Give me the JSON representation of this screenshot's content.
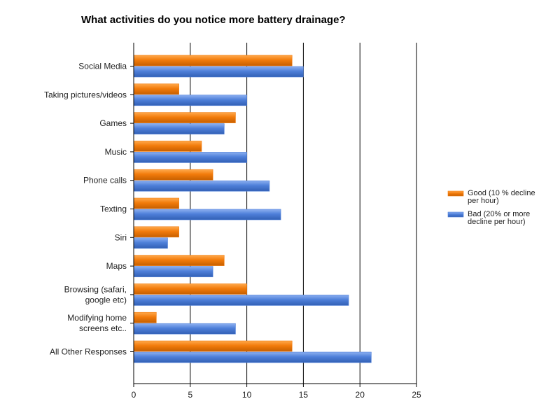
{
  "chart_data": {
    "type": "bar",
    "orientation": "horizontal",
    "title": "What activities do you notice more battery drainage?",
    "categories": [
      "Social Media",
      "Taking pictures/videos",
      "Games",
      "Music",
      "Phone calls",
      "Texting",
      "Siri",
      "Maps",
      "Browsing (safari, google etc)",
      "Modifying home screens etc..",
      "All Other Responses"
    ],
    "category_label_lines": [
      [
        "Social Media"
      ],
      [
        "Taking pictures/videos"
      ],
      [
        "Games"
      ],
      [
        "Music"
      ],
      [
        "Phone calls"
      ],
      [
        "Texting"
      ],
      [
        "Siri"
      ],
      [
        "Maps"
      ],
      [
        "Browsing (safari,",
        "google etc)"
      ],
      [
        "Modifying home",
        "screens etc.."
      ],
      [
        "All Other Responses"
      ]
    ],
    "series": [
      {
        "name": "Good (10 % decline per hour)",
        "legend_lines": [
          "Good (10 % decline",
          "per hour)"
        ],
        "color": "#f27b0b",
        "values": [
          14,
          4,
          9,
          6,
          7,
          4,
          4,
          8,
          10,
          2,
          14
        ]
      },
      {
        "name": "Bad (20% or more decline per hour)",
        "legend_lines": [
          "Bad (20% or more",
          "decline per hour)"
        ],
        "color": "#4e7fd9",
        "values": [
          15,
          10,
          8,
          10,
          12,
          13,
          3,
          7,
          19,
          9,
          21
        ]
      }
    ],
    "xlim": [
      0,
      25
    ],
    "xticks": [
      0,
      5,
      10,
      15,
      20,
      25
    ],
    "xlabel": "",
    "ylabel": "",
    "grid": "vertical",
    "legend_position": "right"
  }
}
